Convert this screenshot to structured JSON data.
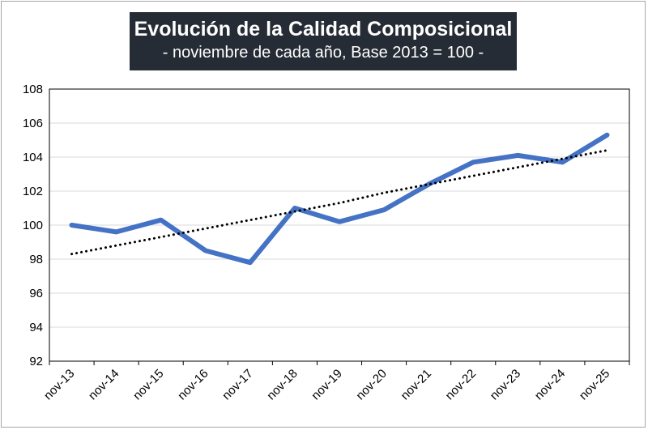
{
  "chart_data": {
    "type": "line",
    "title": "Evolución de la Calidad Composicional",
    "subtitle": "- noviembre de cada año, Base 2013 = 100 -",
    "categories": [
      "nov-13",
      "nov-14",
      "nov-15",
      "nov-16",
      "nov-17",
      "nov-18",
      "nov-19",
      "nov-20",
      "nov-21",
      "nov-22",
      "nov-23",
      "nov-24",
      "nov-25"
    ],
    "series": [
      {
        "values": [
          100.0,
          99.6,
          100.3,
          98.5,
          97.8,
          101.0,
          100.2,
          100.9,
          102.4,
          103.7,
          104.1,
          103.7,
          105.3
        ],
        "color": "#4472c4",
        "style": "solid"
      },
      {
        "values": [
          98.3,
          98.8,
          99.3,
          99.8,
          100.3,
          100.8,
          101.3,
          101.9,
          102.4,
          102.9,
          103.4,
          103.9,
          104.4
        ],
        "color": "#000000",
        "style": "dotted"
      }
    ],
    "ylim": [
      92,
      108
    ],
    "yticks": [
      92,
      94,
      96,
      98,
      100,
      102,
      104,
      106,
      108
    ],
    "ytick_labels": [
      "92",
      "94",
      "96",
      "98",
      "100",
      "102",
      "104",
      "106",
      "108"
    ],
    "grid": true,
    "legend": "none"
  }
}
